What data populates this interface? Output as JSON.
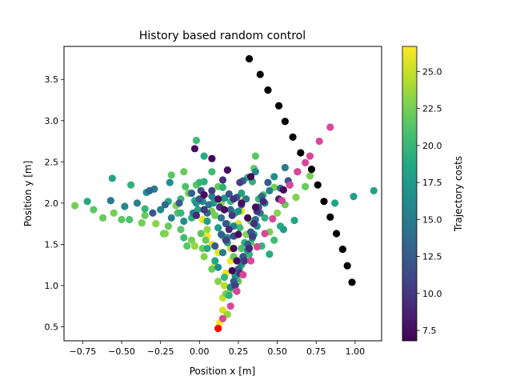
{
  "chart_data": {
    "type": "scatter",
    "title": "History based random control",
    "xlabel": "Position x [m]",
    "ylabel": "Position y [m]",
    "xlim": [
      -0.87,
      1.17
    ],
    "ylim": [
      0.33,
      3.9
    ],
    "xticks": [
      "−0.75",
      "−0.50",
      "−0.25",
      "0.00",
      "0.25",
      "0.50",
      "0.75",
      "1.00"
    ],
    "xtick_values": [
      -0.75,
      -0.5,
      -0.25,
      0.0,
      0.25,
      0.5,
      0.75,
      1.0
    ],
    "yticks": [
      "0.5",
      "1.0",
      "1.5",
      "2.0",
      "2.5",
      "3.0",
      "3.5"
    ],
    "ytick_values": [
      0.5,
      1.0,
      1.5,
      2.0,
      2.5,
      3.0,
      3.5
    ],
    "grid": false,
    "colorbar": {
      "label": "Trajectory costs",
      "colormap": "viridis",
      "range": [
        6.8,
        26.7
      ],
      "ticks": [
        "7.5",
        "10.0",
        "12.5",
        "15.0",
        "17.5",
        "20.0",
        "22.5",
        "25.0"
      ],
      "tick_values": [
        7.5,
        10.0,
        12.5,
        15.0,
        17.5,
        20.0,
        22.5,
        25.0
      ]
    },
    "colors": {
      "reference_path": "#000000",
      "start_point": "#ff0000",
      "highlight_trajectory": "#d6489a"
    },
    "series": [
      {
        "role": "reference_path",
        "x": [
          0.32,
          0.39,
          0.44,
          0.51,
          0.55,
          0.6,
          0.65,
          0.72,
          0.76,
          0.8,
          0.84,
          0.88,
          0.92,
          0.95,
          0.98
        ],
        "y": [
          3.75,
          3.56,
          3.37,
          3.18,
          2.99,
          2.8,
          2.61,
          2.41,
          2.22,
          2.02,
          1.83,
          1.63,
          1.44,
          1.24,
          1.04
        ]
      },
      {
        "role": "start_point",
        "x": [
          0.12
        ],
        "y": [
          0.48
        ]
      },
      {
        "role": "highlight_trajectory",
        "x": [
          0.15,
          0.2,
          0.24,
          0.28,
          0.33,
          0.37,
          0.42,
          0.47,
          0.53,
          0.58,
          0.63,
          0.68,
          0.71,
          0.77,
          0.84
        ],
        "y": [
          0.6,
          0.75,
          0.93,
          1.13,
          1.3,
          1.47,
          1.63,
          1.81,
          2.03,
          2.22,
          2.38,
          2.49,
          2.57,
          2.75,
          2.92
        ]
      },
      {
        "role": "samples",
        "points": [
          [
            0.13,
            0.55,
            26.5
          ],
          [
            0.15,
            0.7,
            25.5
          ],
          [
            0.15,
            0.85,
            25.0
          ],
          [
            0.16,
            1.0,
            24.5
          ],
          [
            0.17,
            1.15,
            26.0
          ],
          [
            0.2,
            1.3,
            26.5
          ],
          [
            0.12,
            1.4,
            26.0
          ],
          [
            0.05,
            1.6,
            26.5
          ],
          [
            0.02,
            1.8,
            26.0
          ],
          [
            0.2,
            1.45,
            25.0
          ],
          [
            0.23,
            1.6,
            26.0
          ],
          [
            0.25,
            1.75,
            25.5
          ],
          [
            0.27,
            1.9,
            26.0
          ],
          [
            0.29,
            2.05,
            25.0
          ],
          [
            0.1,
            1.25,
            25.5
          ],
          [
            0.08,
            1.5,
            26.0
          ],
          [
            0.18,
            0.65,
            23.5
          ],
          [
            0.17,
            0.9,
            22.5
          ],
          [
            0.12,
            1.05,
            23.0
          ],
          [
            0.08,
            1.2,
            22.0
          ],
          [
            0.03,
            1.35,
            23.0
          ],
          [
            -0.05,
            1.55,
            22.5
          ],
          [
            -0.12,
            1.68,
            21.5
          ],
          [
            -0.2,
            1.72,
            22.0
          ],
          [
            -0.28,
            1.75,
            23.0
          ],
          [
            -0.37,
            1.76,
            22.5
          ],
          [
            -0.45,
            1.8,
            21.0
          ],
          [
            -0.55,
            1.88,
            22.5
          ],
          [
            -0.62,
            1.82,
            22.0
          ],
          [
            -0.68,
            1.92,
            21.5
          ],
          [
            -0.8,
            1.97,
            22.5
          ],
          [
            -0.5,
            1.8,
            21.5
          ],
          [
            -0.23,
            1.63,
            22.0
          ],
          [
            -0.18,
            2.34,
            21.5
          ],
          [
            -0.1,
            2.38,
            22.0
          ],
          [
            -0.02,
            2.22,
            21.5
          ],
          [
            -0.07,
            2.12,
            22.5
          ],
          [
            -0.15,
            1.97,
            23.0
          ],
          [
            0.27,
            1.45,
            21.0
          ],
          [
            0.3,
            1.62,
            23.0
          ],
          [
            0.33,
            1.78,
            22.0
          ],
          [
            0.37,
            1.95,
            22.5
          ],
          [
            0.41,
            2.1,
            21.0
          ],
          [
            0.48,
            2.19,
            22.5
          ],
          [
            0.55,
            1.98,
            22.0
          ],
          [
            0.62,
            2.07,
            23.0
          ],
          [
            0.68,
            2.2,
            22.0
          ],
          [
            0.71,
            2.33,
            22.5
          ],
          [
            0.22,
            1.35,
            22.0
          ],
          [
            0.26,
            1.2,
            23.5
          ],
          [
            0.25,
            1.05,
            22.5
          ],
          [
            0.2,
            0.95,
            23.0
          ],
          [
            0.05,
            1.68,
            23.5
          ],
          [
            0.1,
            1.85,
            22.5
          ],
          [
            0.14,
            2.0,
            23.0
          ],
          [
            0.18,
            1.75,
            21.5
          ],
          [
            -0.08,
            1.48,
            21.5
          ],
          [
            0.02,
            1.45,
            22.0
          ],
          [
            -0.22,
            1.63,
            23.0
          ],
          [
            -0.35,
            1.85,
            22.0
          ],
          [
            0.45,
            1.65,
            22.5
          ],
          [
            0.5,
            1.88,
            23.0
          ],
          [
            0.3,
            1.37,
            22.5
          ],
          [
            0.33,
            1.52,
            21.5
          ],
          [
            0.15,
            1.6,
            21.0
          ],
          [
            0.01,
            1.63,
            21.5
          ],
          [
            -0.03,
            1.48,
            23.5
          ],
          [
            0.04,
            1.55,
            22.0
          ],
          [
            0.08,
            1.9,
            22.5
          ],
          [
            0.35,
            2.42,
            22.0
          ],
          [
            0.36,
            2.57,
            21.5
          ],
          [
            -0.09,
            2.2,
            21.0
          ],
          [
            0.12,
            2.2,
            22.0
          ],
          [
            -0.14,
            1.88,
            21.0
          ],
          [
            0.19,
            0.88,
            19.5
          ],
          [
            0.16,
            1.1,
            20.0
          ],
          [
            0.1,
            1.3,
            18.5
          ],
          [
            0.05,
            1.45,
            19.0
          ],
          [
            -0.1,
            1.58,
            20.5
          ],
          [
            -0.12,
            1.88,
            20.0
          ],
          [
            -0.03,
            2.03,
            19.0
          ],
          [
            0.0,
            2.25,
            20.0
          ],
          [
            0.03,
            2.26,
            19.5
          ],
          [
            -0.02,
            2.76,
            20.5
          ],
          [
            0.03,
            2.57,
            19.0
          ],
          [
            0.08,
            2.38,
            20.5
          ],
          [
            0.15,
            2.19,
            19.5
          ],
          [
            0.2,
            2.02,
            20.0
          ],
          [
            0.23,
            1.88,
            19.0
          ],
          [
            0.26,
            1.7,
            20.5
          ],
          [
            0.29,
            1.52,
            19.5
          ],
          [
            0.32,
            1.38,
            20.0
          ],
          [
            0.27,
            1.25,
            19.0
          ],
          [
            0.24,
            1.08,
            20.5
          ],
          [
            0.34,
            2.26,
            19.5
          ],
          [
            0.38,
            2.05,
            20.0
          ],
          [
            0.42,
            1.82,
            19.5
          ],
          [
            0.35,
            1.62,
            18.5
          ],
          [
            0.4,
            1.48,
            20.0
          ],
          [
            0.45,
            1.38,
            19.0
          ],
          [
            0.48,
            1.55,
            20.5
          ],
          [
            0.52,
            1.72,
            19.0
          ],
          [
            -0.05,
            1.82,
            19.5
          ],
          [
            -0.12,
            2.05,
            20.0
          ],
          [
            -0.2,
            2.02,
            19.0
          ],
          [
            -0.35,
            1.93,
            20.0
          ],
          [
            -0.44,
            2.22,
            19.5
          ],
          [
            -0.56,
            2.3,
            18.5
          ],
          [
            -0.72,
            2.02,
            19.0
          ],
          [
            0.99,
            2.08,
            18.0
          ],
          [
            1.12,
            2.15,
            18.5
          ],
          [
            0.61,
            1.79,
            18.5
          ],
          [
            0.87,
            2.0,
            18.5
          ],
          [
            0.54,
            1.68,
            17.5
          ],
          [
            0.05,
            1.78,
            18.0
          ],
          [
            0.12,
            1.7,
            17.5
          ],
          [
            0.18,
            1.52,
            18.0
          ],
          [
            -0.01,
            1.92,
            18.5
          ],
          [
            0.27,
            2.12,
            18.0
          ],
          [
            0.31,
            2.31,
            19.0
          ],
          [
            0.09,
            2.0,
            17.5
          ],
          [
            0.2,
            0.98,
            15.5
          ],
          [
            0.23,
            1.12,
            16.5
          ],
          [
            0.27,
            1.28,
            15.0
          ],
          [
            0.31,
            1.43,
            16.0
          ],
          [
            0.34,
            1.58,
            15.5
          ],
          [
            0.37,
            1.72,
            16.5
          ],
          [
            0.39,
            1.88,
            15.0
          ],
          [
            0.42,
            2.0,
            16.0
          ],
          [
            0.45,
            2.15,
            15.5
          ],
          [
            0.48,
            2.32,
            16.5
          ],
          [
            0.55,
            2.43,
            15.0
          ],
          [
            0.58,
            2.22,
            16.0
          ],
          [
            0.63,
            2.38,
            15.5
          ],
          [
            0.36,
            2.38,
            16.0
          ],
          [
            0.3,
            2.05,
            15.0
          ],
          [
            0.25,
            1.9,
            16.5
          ],
          [
            0.22,
            1.72,
            15.5
          ],
          [
            0.18,
            1.58,
            16.0
          ],
          [
            0.15,
            1.4,
            15.0
          ],
          [
            0.12,
            1.22,
            16.5
          ],
          [
            0.08,
            2.08,
            15.5
          ],
          [
            0.02,
            2.02,
            16.0
          ],
          [
            -0.04,
            1.88,
            15.0
          ],
          [
            -0.1,
            1.78,
            16.5
          ],
          [
            -0.18,
            1.82,
            15.5
          ],
          [
            -0.25,
            1.92,
            16.0
          ],
          [
            -0.29,
            2.17,
            15.0
          ],
          [
            -0.34,
            2.13,
            16.5
          ],
          [
            -0.4,
            2.0,
            15.5
          ],
          [
            -0.48,
            1.96,
            16.0
          ],
          [
            -0.57,
            2.03,
            15.0
          ],
          [
            -0.19,
            2.25,
            16.5
          ],
          [
            -0.02,
            2.0,
            17.0
          ],
          [
            0.06,
            1.98,
            14.5
          ],
          [
            0.14,
            1.82,
            14.5
          ],
          [
            0.16,
            2.06,
            17.0
          ],
          [
            0.22,
            1.05,
            12.5
          ],
          [
            0.25,
            1.2,
            13.5
          ],
          [
            0.28,
            1.35,
            12.0
          ],
          [
            0.31,
            1.5,
            13.0
          ],
          [
            0.33,
            1.65,
            12.5
          ],
          [
            0.36,
            1.8,
            13.5
          ],
          [
            0.38,
            1.95,
            12.0
          ],
          [
            0.4,
            2.08,
            13.0
          ],
          [
            0.44,
            2.25,
            12.5
          ],
          [
            0.52,
            2.18,
            13.5
          ],
          [
            0.57,
            2.27,
            12.0
          ],
          [
            0.28,
            2.27,
            13.0
          ],
          [
            0.24,
            2.07,
            12.5
          ],
          [
            0.2,
            1.92,
            13.5
          ],
          [
            0.17,
            1.75,
            12.0
          ],
          [
            0.14,
            1.62,
            13.0
          ],
          [
            0.1,
            1.48,
            12.5
          ],
          [
            0.05,
            1.88,
            13.5
          ],
          [
            0.0,
            2.05,
            12.0
          ],
          [
            -0.05,
            2.12,
            13.0
          ],
          [
            -0.13,
            2.0,
            12.5
          ],
          [
            -0.22,
            1.98,
            13.5
          ],
          [
            -0.3,
            1.88,
            12.0
          ],
          [
            -0.32,
            2.15,
            13.0
          ],
          [
            0.19,
            2.11,
            12.0
          ],
          [
            0.27,
            1.98,
            11.5
          ],
          [
            0.22,
            1.6,
            11.5
          ],
          [
            0.01,
            2.15,
            11.5
          ],
          [
            0.23,
            1.0,
            10.5
          ],
          [
            0.26,
            1.15,
            9.5
          ],
          [
            0.29,
            1.3,
            10.0
          ],
          [
            0.32,
            1.45,
            9.0
          ],
          [
            0.34,
            1.6,
            10.5
          ],
          [
            0.35,
            1.75,
            9.5
          ],
          [
            0.37,
            1.9,
            10.0
          ],
          [
            0.41,
            2.02,
            9.0
          ],
          [
            0.26,
            2.25,
            10.5
          ],
          [
            0.22,
            2.05,
            9.5
          ],
          [
            0.21,
            1.85,
            10.0
          ],
          [
            0.19,
            1.68,
            9.0
          ],
          [
            0.17,
            1.55,
            10.5
          ],
          [
            0.13,
            1.95,
            9.5
          ],
          [
            0.03,
            1.92,
            10.0
          ],
          [
            -0.02,
            1.85,
            9.0
          ],
          [
            0.08,
            2.15,
            10.5
          ],
          [
            0.15,
            2.28,
            9.5
          ],
          [
            0.58,
            2.22,
            10.0
          ],
          [
            0.51,
            2.05,
            9.0
          ],
          [
            -0.03,
            2.66,
            7.5
          ],
          [
            0.08,
            2.54,
            7.0
          ],
          [
            0.18,
            2.4,
            7.5
          ],
          [
            0.33,
            2.32,
            7.0
          ],
          [
            0.27,
            2.0,
            7.5
          ],
          [
            0.31,
            1.82,
            7.0
          ],
          [
            0.25,
            1.62,
            7.5
          ],
          [
            0.22,
            1.45,
            7.0
          ],
          [
            0.24,
            1.3,
            7.5
          ],
          [
            0.21,
            1.18,
            7.0
          ],
          [
            0.36,
            1.95,
            7.5
          ],
          [
            0.54,
            2.16,
            7.0
          ],
          [
            0.12,
            2.05,
            7.5
          ],
          [
            0.03,
            2.1,
            7.0
          ],
          [
            0.16,
            1.92,
            7.5
          ]
        ]
      }
    ]
  }
}
